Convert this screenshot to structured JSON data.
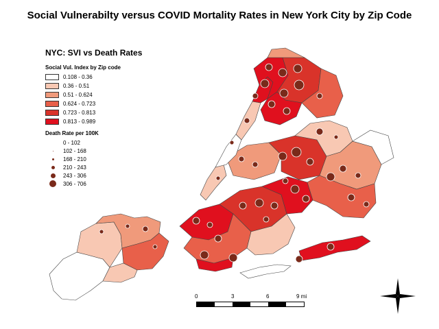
{
  "title": "Social Vulnerabilty versus COVID Mortality Rates in New York City by Zip Code",
  "legend": {
    "heading": "NYC: SVI vs Death Rates",
    "svi_title": "Social Vul. Index by Zip code",
    "svi_classes": [
      {
        "label": "0.108 - 0.36",
        "color": "#ffffff"
      },
      {
        "label": "0.36 - 0.51",
        "color": "#f8c8b3"
      },
      {
        "label": "0.51 - 0.624",
        "color": "#f09a7b"
      },
      {
        "label": "0.624 - 0.723",
        "color": "#e8604a"
      },
      {
        "label": "0.723 - 0.813",
        "color": "#d9332a"
      },
      {
        "label": "0.813 - 0.989",
        "color": "#e0101e"
      }
    ],
    "death_title": "Death Rate per 100K",
    "death_classes": [
      {
        "label": "0 - 102",
        "dot": 0
      },
      {
        "label": "102 - 168",
        "dot": 1
      },
      {
        "label": "168 - 210",
        "dot": 2
      },
      {
        "label": "210 - 243",
        "dot": 3
      },
      {
        "label": "243 - 306",
        "dot": 4
      },
      {
        "label": "306 - 706",
        "dot": 5
      }
    ],
    "dot_color": "#7a2a1a"
  },
  "scalebar": {
    "labels": [
      "0",
      "3",
      "6",
      "9 mi"
    ]
  },
  "north_arrow": "north-arrow-icon"
}
